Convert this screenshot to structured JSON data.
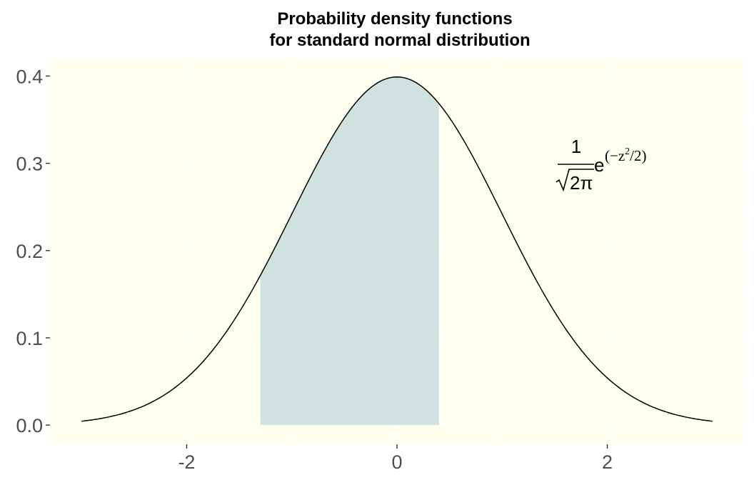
{
  "chart_data": {
    "type": "line",
    "title_line1": "Probability density functions",
    "title_line2": "for standard normal distribution",
    "xlabel": "",
    "ylabel": "",
    "xlim": [
      -3.3,
      3.3
    ],
    "ylim": [
      -0.022,
      0.42
    ],
    "x_ticks": [
      -2,
      0,
      2
    ],
    "x_tick_labels": [
      "-2",
      "0",
      "2"
    ],
    "y_ticks": [
      0.0,
      0.1,
      0.2,
      0.3,
      0.4
    ],
    "y_tick_labels": [
      "0.0",
      "0.1",
      "0.2",
      "0.3",
      "0.4"
    ],
    "grid": true,
    "curve": {
      "x_from": -3,
      "x_to": 3,
      "mean": 0,
      "sd": 1
    },
    "shaded_region": {
      "x_from": -1.3,
      "x_to": 0.4
    },
    "annotation": {
      "numerator": "1",
      "denominator": "2π",
      "base": "e",
      "exponent_open": "(−z",
      "exponent_power": "2",
      "exponent_close": "/2)"
    },
    "colors": {
      "panel_background": "#fffff0",
      "grid": "#ffffff",
      "curve": "#000000",
      "shade": "#cfe2e0",
      "tick_text": "#4d4d4d"
    }
  }
}
